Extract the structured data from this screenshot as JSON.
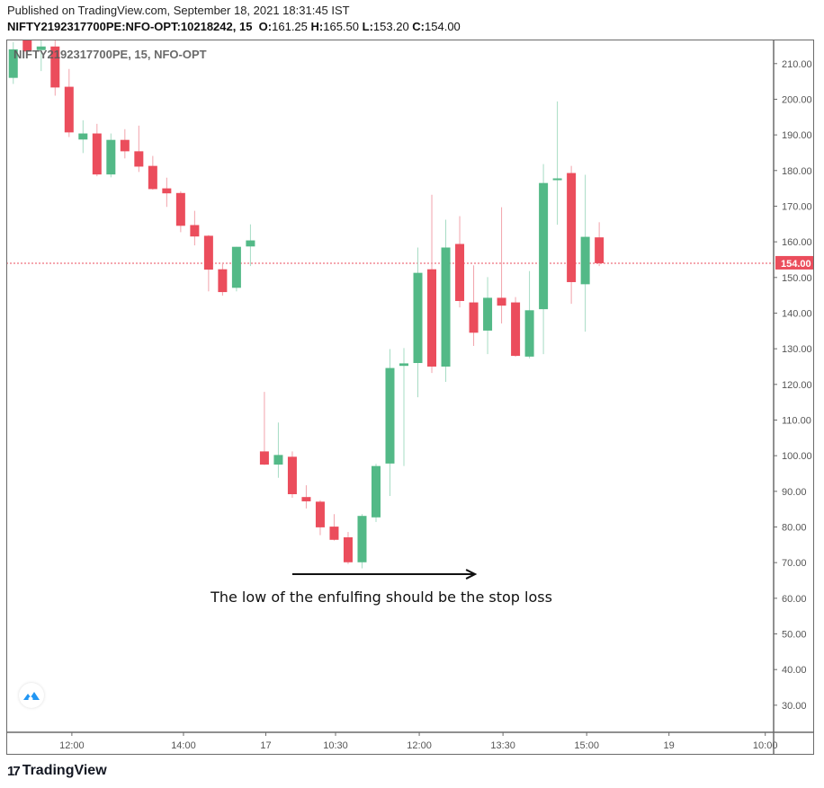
{
  "header": {
    "published": "Published on TradingView.com, September 18, 2021 18:31:45 IST",
    "symbol": "NIFTY2192317700PE:NFO-OPT:10218242, 15",
    "o_label": "O:",
    "o": "161.25",
    "h_label": "H:",
    "h": "165.50",
    "l_label": "L:",
    "l": "153.20",
    "c_label": "C:",
    "c": "154.00"
  },
  "legend": "NIFTY2192317700PE, 15, NFO-OPT",
  "footer": {
    "brand": "TradingView",
    "mark": "17"
  },
  "colors": {
    "up": "#53b987",
    "down": "#eb4d5c",
    "up_wick": "#a6dcc4",
    "down_wick": "#f2a3ab",
    "axis": "#6b6b6b",
    "text": "#555555"
  },
  "chart_data": {
    "type": "candlestick",
    "title": "NIFTY2192317700PE, 15, NFO-OPT",
    "ylim": [
      22.4,
      216.5
    ],
    "xlim": [
      -0.5,
      54.5
    ],
    "yticks": [
      30,
      40,
      50,
      60,
      70,
      80,
      90,
      100,
      110,
      120,
      130,
      140,
      150,
      160,
      170,
      180,
      190,
      200,
      210
    ],
    "ytick_labels": [
      "30.00",
      "40.00",
      "50.00",
      "60.00",
      "70.00",
      "80.00",
      "90.00",
      "100.00",
      "110.00",
      "120.00",
      "130.00",
      "140.00",
      "150.00",
      "160.00",
      "170.00",
      "180.00",
      "190.00",
      "200.00",
      "210.00"
    ],
    "xticks": [
      {
        "i": 4.2,
        "label": "12:00"
      },
      {
        "i": 12.2,
        "label": "14:00"
      },
      {
        "i": 18.1,
        "label": "17"
      },
      {
        "i": 23.1,
        "label": "10:30"
      },
      {
        "i": 29.1,
        "label": "12:00"
      },
      {
        "i": 35.1,
        "label": "13:30"
      },
      {
        "i": 41.1,
        "label": "15:00"
      },
      {
        "i": 47.0,
        "label": "19"
      },
      {
        "i": 53.9,
        "label": "10:00"
      }
    ],
    "last_price": 154.0,
    "last_price_label": "154.00",
    "ohlc": [
      [
        206.0,
        216.0,
        204.3,
        214.0
      ],
      [
        217.0,
        218.0,
        212.5,
        213.4
      ],
      [
        213.8,
        218.0,
        207.9,
        214.8
      ],
      [
        214.8,
        218.0,
        201.0,
        203.3
      ],
      [
        203.5,
        208.5,
        189.4,
        190.7
      ],
      [
        188.7,
        194.1,
        184.9,
        190.4
      ],
      [
        190.4,
        193.1,
        178.4,
        178.9
      ],
      [
        178.9,
        190.4,
        178.1,
        188.6
      ],
      [
        188.6,
        191.6,
        183.4,
        185.4
      ],
      [
        185.4,
        192.6,
        179.6,
        181.1
      ],
      [
        181.3,
        184.1,
        174.6,
        174.8
      ],
      [
        175.0,
        178.0,
        169.8,
        173.6
      ],
      [
        173.7,
        174.2,
        162.7,
        164.5
      ],
      [
        164.7,
        168.7,
        159.0,
        161.5
      ],
      [
        161.7,
        161.9,
        146.1,
        152.2
      ],
      [
        152.3,
        154.2,
        144.9,
        145.9
      ],
      [
        147.1,
        158.6,
        146.1,
        158.6
      ],
      [
        158.7,
        164.9,
        153.2,
        160.4
      ],
      [
        101.2,
        117.9,
        97.4,
        97.5
      ],
      [
        97.5,
        109.3,
        93.8,
        100.2
      ],
      [
        99.7,
        101.2,
        88.2,
        89.2
      ],
      [
        88.4,
        91.7,
        85.2,
        87.2
      ],
      [
        87.1,
        87.5,
        77.7,
        79.9
      ],
      [
        80.1,
        83.6,
        76.2,
        76.4
      ],
      [
        77.1,
        78.6,
        69.6,
        70.1
      ],
      [
        70.1,
        83.6,
        68.4,
        83.1
      ],
      [
        82.7,
        97.7,
        81.4,
        97.1
      ],
      [
        97.8,
        129.9,
        88.7,
        124.6
      ],
      [
        125.2,
        130.2,
        97.1,
        125.9
      ],
      [
        126.0,
        158.4,
        116.4,
        151.3
      ],
      [
        152.3,
        173.2,
        123.2,
        125.0
      ],
      [
        125.0,
        166.2,
        120.7,
        158.4
      ],
      [
        159.4,
        167.2,
        141.6,
        143.4
      ],
      [
        143.0,
        153.4,
        130.8,
        134.5
      ],
      [
        135.1,
        150.1,
        128.5,
        144.3
      ],
      [
        144.3,
        169.7,
        137.1,
        142.1
      ],
      [
        143.0,
        144.5,
        127.8,
        128.0
      ],
      [
        127.8,
        151.8,
        127.3,
        140.8
      ],
      [
        141.1,
        181.8,
        128.5,
        176.5
      ],
      [
        177.3,
        199.4,
        164.8,
        177.8
      ],
      [
        179.3,
        181.3,
        142.6,
        148.7
      ],
      [
        148.1,
        178.8,
        134.8,
        161.4
      ],
      [
        161.25,
        165.5,
        153.2,
        154.0
      ]
    ],
    "annotations": [
      {
        "type": "arrow",
        "from": {
          "i": 20.0,
          "price": 66.75
        },
        "to": {
          "i": 33.1,
          "price": 66.75
        }
      },
      {
        "type": "text",
        "text": "The low of the enfulfing should be the stop loss"
      }
    ]
  }
}
